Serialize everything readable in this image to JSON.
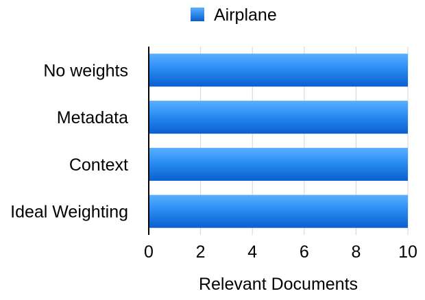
{
  "chart_data": {
    "type": "bar",
    "orientation": "horizontal",
    "categories": [
      "No weights",
      "Metadata",
      "Context",
      "Ideal Weighting"
    ],
    "series": [
      {
        "name": "Airplane",
        "values": [
          10,
          10,
          10,
          10
        ],
        "color": "#1f7ee6"
      }
    ],
    "xlabel": "Relevant Documents",
    "ylabel": "",
    "xlim": [
      0,
      10
    ],
    "xticks": [
      0,
      2,
      4,
      6,
      8,
      10
    ],
    "grid": true,
    "legend_position": "top-center"
  }
}
